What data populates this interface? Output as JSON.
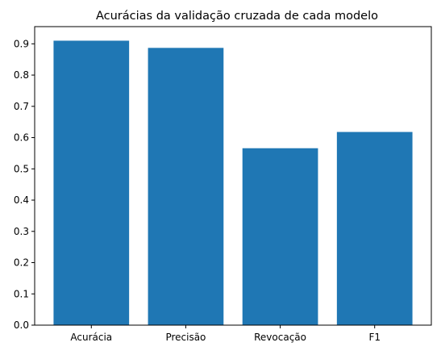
{
  "chart_data": {
    "type": "bar",
    "title": "Acurácias da validação cruzada de cada modelo",
    "xlabel": "",
    "ylabel": "",
    "categories": [
      "Acurácia",
      "Precisão",
      "Revocação",
      "F1"
    ],
    "values": [
      0.91,
      0.887,
      0.566,
      0.618
    ],
    "ylim": [
      0,
      0.955
    ],
    "yticks": [
      "0.0",
      "0.1",
      "0.2",
      "0.3",
      "0.4",
      "0.5",
      "0.6",
      "0.7",
      "0.8",
      "0.9"
    ],
    "grid": false,
    "bar_color": "#1f77b4"
  }
}
